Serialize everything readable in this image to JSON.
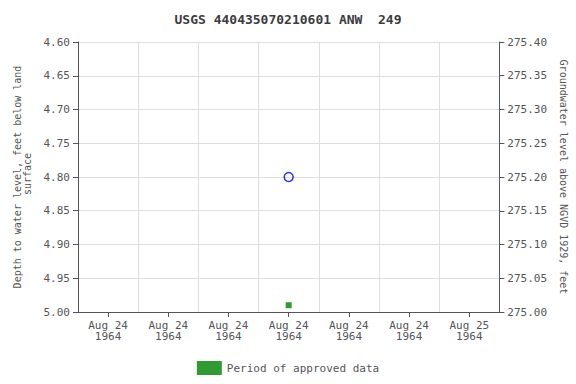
{
  "chart_data": {
    "type": "scatter",
    "title": "USGS 440435070210601 ANW  249",
    "ylabel": "Depth to water level, feet below land\n surface",
    "y2label": "Groundwater level above NGVD 1929, feet",
    "categories": [
      "Aug 24\n1964",
      "Aug 24\n1964",
      "Aug 24\n1964",
      "Aug 24\n1964",
      "Aug 24\n1964",
      "Aug 24\n1964",
      "Aug 25\n1964"
    ],
    "series": [
      {
        "color": "#0000cc",
        "marker": "circle-open",
        "values": [
          null,
          null,
          null,
          4.8,
          null,
          null,
          null
        ]
      },
      {
        "name": "Period of approved data",
        "color": "#008000",
        "marker": "square",
        "values": [
          null,
          null,
          null,
          4.99,
          null,
          null,
          null
        ]
      }
    ],
    "ylim": [
      5.0,
      4.6
    ],
    "yticks": [
      {
        "value": 4.6,
        "label": "4.60"
      },
      4.65,
      {
        "value": 4.7,
        "label": "4.70"
      },
      4.75,
      {
        "value": 4.8,
        "label": "4.80"
      },
      4.85,
      {
        "value": 4.9,
        "label": "4.90"
      },
      4.95,
      {
        "value": 5.0,
        "label": "5.00"
      }
    ],
    "y2lim": [
      275.0,
      275.4
    ],
    "y2ticks": [
      {
        "value": 275.4,
        "label": "275.40"
      },
      275.35,
      {
        "value": 275.3,
        "label": "275.30"
      },
      275.25,
      {
        "value": 275.2,
        "label": "275.20"
      },
      275.15,
      {
        "value": 275.1,
        "label": "275.10"
      },
      275.05,
      {
        "value": 275.0,
        "label": "275.00"
      }
    ],
    "grid": true,
    "legend": "bottom"
  }
}
